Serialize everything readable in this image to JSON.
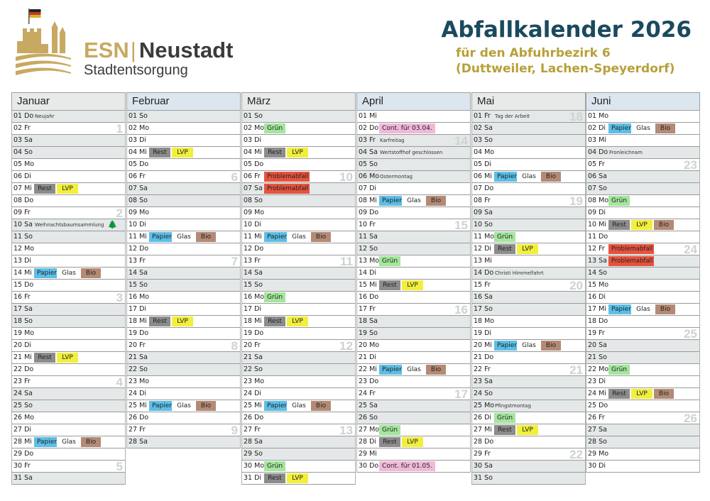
{
  "header": {
    "brand_esn": "ESN",
    "brand_sep": "|",
    "brand_city": "Neustadt",
    "brand_sub": "Stadtentsorgung",
    "title": "Abfallkalender 2026",
    "subtitle_line1": "für den Abfuhrbezirk 6",
    "subtitle_line2": "(Duttweiler, Lachen-Speyerdorf)"
  },
  "colors": {
    "rest": "#8c8c8c",
    "lvp": "#f2ef3c",
    "papier": "#5bbfe8",
    "bio": "#b48a75",
    "gruen": "#a3e69c",
    "problem": "#e5533d",
    "cont": "#f2b8d9",
    "title": "#1a4a5e",
    "gold": "#c8a962"
  },
  "months": [
    {
      "name": "Januar",
      "head": "gray",
      "days": [
        {
          "d": "01 Do",
          "we": true,
          "note": "Neujahr"
        },
        {
          "d": "02 Fr",
          "wk": "1"
        },
        {
          "d": "03 Sa",
          "we": true
        },
        {
          "d": "04 So",
          "we": true
        },
        {
          "d": "05 Mo"
        },
        {
          "d": "06 Di"
        },
        {
          "d": "07 Mi",
          "ev": [
            [
              "rest",
              "Rest"
            ],
            [
              "lvp",
              "LVP"
            ]
          ]
        },
        {
          "d": "08 Do"
        },
        {
          "d": "09 Fr",
          "wk": "2"
        },
        {
          "d": "10 Sa",
          "we": true,
          "note": "Weihnachtsbaumsammlung",
          "tree": true
        },
        {
          "d": "11 So",
          "we": true
        },
        {
          "d": "12 Mo"
        },
        {
          "d": "13 Di"
        },
        {
          "d": "14 Mi",
          "ev": [
            [
              "papier",
              "Papier"
            ],
            [
              "glas",
              "Glas"
            ],
            [
              "bio",
              "Bio"
            ]
          ]
        },
        {
          "d": "15 Do"
        },
        {
          "d": "16 Fr",
          "wk": "3"
        },
        {
          "d": "17 Sa",
          "we": true
        },
        {
          "d": "18 So",
          "we": true
        },
        {
          "d": "19 Mo"
        },
        {
          "d": "20 Di"
        },
        {
          "d": "21 Mi",
          "ev": [
            [
              "rest",
              "Rest"
            ],
            [
              "lvp",
              "LVP"
            ]
          ]
        },
        {
          "d": "22 Do"
        },
        {
          "d": "23 Fr",
          "wk": "4"
        },
        {
          "d": "24 Sa",
          "we": true
        },
        {
          "d": "25 So",
          "we": true
        },
        {
          "d": "26 Mo"
        },
        {
          "d": "27 Di"
        },
        {
          "d": "28 Mi",
          "ev": [
            [
              "papier",
              "Papier"
            ],
            [
              "glas",
              "Glas"
            ],
            [
              "bio",
              "Bio"
            ]
          ]
        },
        {
          "d": "29 Do"
        },
        {
          "d": "30 Fr",
          "wk": "5"
        },
        {
          "d": "31 Sa",
          "we": true
        }
      ]
    },
    {
      "name": "Februar",
      "head": "blue",
      "days": [
        {
          "d": "01 So",
          "we": true
        },
        {
          "d": "02 Mo"
        },
        {
          "d": "03 Di"
        },
        {
          "d": "04 Mi",
          "ev": [
            [
              "rest",
              "Rest"
            ],
            [
              "lvp",
              "LVP"
            ]
          ]
        },
        {
          "d": "05 Do"
        },
        {
          "d": "06 Fr",
          "wk": "6"
        },
        {
          "d": "07 Sa",
          "we": true
        },
        {
          "d": "08 So",
          "we": true
        },
        {
          "d": "09 Mo"
        },
        {
          "d": "10 Di"
        },
        {
          "d": "11 Mi",
          "ev": [
            [
              "papier",
              "Papier"
            ],
            [
              "glas",
              "Glas"
            ],
            [
              "bio",
              "Bio"
            ]
          ]
        },
        {
          "d": "12 Do"
        },
        {
          "d": "13 Fr",
          "wk": "7"
        },
        {
          "d": "14 Sa",
          "we": true
        },
        {
          "d": "15 So",
          "we": true
        },
        {
          "d": "16 Mo"
        },
        {
          "d": "17 Di"
        },
        {
          "d": "18 Mi",
          "ev": [
            [
              "rest",
              "Rest"
            ],
            [
              "lvp",
              "LVP"
            ]
          ]
        },
        {
          "d": "19 Do"
        },
        {
          "d": "20 Fr",
          "wk": "8"
        },
        {
          "d": "21 Sa",
          "we": true
        },
        {
          "d": "22 So",
          "we": true
        },
        {
          "d": "23 Mo"
        },
        {
          "d": "24 Di"
        },
        {
          "d": "25 Mi",
          "ev": [
            [
              "papier",
              "Papier"
            ],
            [
              "glas",
              "Glas"
            ],
            [
              "bio",
              "Bio"
            ]
          ]
        },
        {
          "d": "26 Do"
        },
        {
          "d": "27 Fr",
          "wk": "9"
        },
        {
          "d": "28 Sa",
          "we": true
        }
      ]
    },
    {
      "name": "März",
      "head": "gray",
      "days": [
        {
          "d": "01 So",
          "we": true
        },
        {
          "d": "02 Mo",
          "ev": [
            [
              "gruen",
              "Grün"
            ]
          ]
        },
        {
          "d": "03 Di"
        },
        {
          "d": "04 Mi",
          "ev": [
            [
              "rest",
              "Rest"
            ],
            [
              "lvp",
              "LVP"
            ]
          ]
        },
        {
          "d": "05 Do"
        },
        {
          "d": "06 Fr",
          "ev": [
            [
              "problem",
              "Problemabfall"
            ]
          ],
          "wk": "10"
        },
        {
          "d": "07 Sa",
          "we": true,
          "ev": [
            [
              "problem",
              "Problemabfall"
            ]
          ]
        },
        {
          "d": "08 So",
          "we": true
        },
        {
          "d": "09 Mo"
        },
        {
          "d": "10 Di"
        },
        {
          "d": "11 Mi",
          "ev": [
            [
              "papier",
              "Papier"
            ],
            [
              "glas",
              "Glas"
            ],
            [
              "bio",
              "Bio"
            ]
          ]
        },
        {
          "d": "12 Do"
        },
        {
          "d": "13 Fr",
          "wk": "11"
        },
        {
          "d": "14 Sa",
          "we": true
        },
        {
          "d": "15 So",
          "we": true
        },
        {
          "d": "16 Mo",
          "ev": [
            [
              "gruen",
              "Grün"
            ]
          ]
        },
        {
          "d": "17 Di"
        },
        {
          "d": "18 Mi",
          "ev": [
            [
              "rest",
              "Rest"
            ],
            [
              "lvp",
              "LVP"
            ]
          ]
        },
        {
          "d": "19 Do"
        },
        {
          "d": "20 Fr",
          "wk": "12"
        },
        {
          "d": "21 Sa",
          "we": true
        },
        {
          "d": "22 So",
          "we": true
        },
        {
          "d": "23 Mo"
        },
        {
          "d": "24 Di"
        },
        {
          "d": "25 Mi",
          "ev": [
            [
              "papier",
              "Papier"
            ],
            [
              "glas",
              "Glas"
            ],
            [
              "bio",
              "Bio"
            ]
          ]
        },
        {
          "d": "26 Do"
        },
        {
          "d": "27 Fr",
          "wk": "13"
        },
        {
          "d": "28 Sa",
          "we": true
        },
        {
          "d": "29 So",
          "we": true
        },
        {
          "d": "30 Mo",
          "ev": [
            [
              "gruen",
              "Grün"
            ]
          ]
        },
        {
          "d": "31 Di",
          "ev": [
            [
              "rest",
              "Rest"
            ],
            [
              "lvp",
              "LVP"
            ]
          ]
        }
      ]
    },
    {
      "name": "April",
      "head": "blue",
      "days": [
        {
          "d": "01 Mi"
        },
        {
          "d": "02 Do",
          "ev": [
            [
              "cont",
              "Cont. für 03.04."
            ]
          ]
        },
        {
          "d": "03 Fr",
          "we": true,
          "note": "Karfreitag",
          "wk": "14"
        },
        {
          "d": "04 Sa",
          "we": true,
          "note": "Wertstoffhof geschlossen"
        },
        {
          "d": "05 So",
          "we": true
        },
        {
          "d": "06 Mo",
          "we": true,
          "note": "Ostermontag"
        },
        {
          "d": "07 Di"
        },
        {
          "d": "08 Mi",
          "ev": [
            [
              "papier",
              "Papier"
            ],
            [
              "glas",
              "Glas"
            ],
            [
              "bio",
              "Bio"
            ]
          ]
        },
        {
          "d": "09 Do"
        },
        {
          "d": "10 Fr",
          "wk": "15"
        },
        {
          "d": "11 Sa",
          "we": true
        },
        {
          "d": "12 So",
          "we": true
        },
        {
          "d": "13 Mo",
          "ev": [
            [
              "gruen",
              "Grün"
            ]
          ]
        },
        {
          "d": "14 Di"
        },
        {
          "d": "15 Mi",
          "ev": [
            [
              "rest",
              "Rest"
            ],
            [
              "lvp",
              "LVP"
            ]
          ]
        },
        {
          "d": "16 Do"
        },
        {
          "d": "17 Fr",
          "wk": "16"
        },
        {
          "d": "18 Sa",
          "we": true
        },
        {
          "d": "19 So",
          "we": true
        },
        {
          "d": "20 Mo"
        },
        {
          "d": "21 Di"
        },
        {
          "d": "22 Mi",
          "ev": [
            [
              "papier",
              "Papier"
            ],
            [
              "glas",
              "Glas"
            ],
            [
              "bio",
              "Bio"
            ]
          ]
        },
        {
          "d": "23 Do"
        },
        {
          "d": "24 Fr",
          "wk": "17"
        },
        {
          "d": "25 Sa",
          "we": true
        },
        {
          "d": "26 So",
          "we": true
        },
        {
          "d": "27 Mo",
          "ev": [
            [
              "gruen",
              "Grün"
            ]
          ]
        },
        {
          "d": "28 Di",
          "ev": [
            [
              "rest",
              "Rest"
            ],
            [
              "lvp",
              "LVP"
            ]
          ]
        },
        {
          "d": "29 Mi"
        },
        {
          "d": "30 Do",
          "ev": [
            [
              "cont",
              "Cont. für 01.05."
            ]
          ]
        }
      ]
    },
    {
      "name": "Mai",
      "head": "gray",
      "days": [
        {
          "d": "01 Fr",
          "we": true,
          "note": "Tag der Arbeit",
          "wk": "18"
        },
        {
          "d": "02 Sa",
          "we": true
        },
        {
          "d": "03 So",
          "we": true
        },
        {
          "d": "04 Mo"
        },
        {
          "d": "05 Di"
        },
        {
          "d": "06 Mi",
          "ev": [
            [
              "papier",
              "Papier"
            ],
            [
              "glas",
              "Glas"
            ],
            [
              "bio",
              "Bio"
            ]
          ]
        },
        {
          "d": "07 Do"
        },
        {
          "d": "08 Fr",
          "wk": "19"
        },
        {
          "d": "09 Sa",
          "we": true
        },
        {
          "d": "10 So",
          "we": true
        },
        {
          "d": "11 Mo",
          "ev": [
            [
              "gruen",
              "Grün"
            ]
          ]
        },
        {
          "d": "12 Di",
          "ev": [
            [
              "rest",
              "Rest"
            ],
            [
              "lvp",
              "LVP"
            ]
          ]
        },
        {
          "d": "13 Mi"
        },
        {
          "d": "14 Do",
          "we": true,
          "note": "Christi Himmelfahrt"
        },
        {
          "d": "15 Fr",
          "wk": "20"
        },
        {
          "d": "16 Sa",
          "we": true
        },
        {
          "d": "17 So",
          "we": true
        },
        {
          "d": "18 Mo"
        },
        {
          "d": "19 Di"
        },
        {
          "d": "20 Mi",
          "ev": [
            [
              "papier",
              "Papier"
            ],
            [
              "glas",
              "Glas"
            ],
            [
              "bio",
              "Bio"
            ]
          ]
        },
        {
          "d": "21 Do"
        },
        {
          "d": "22 Fr",
          "wk": "21"
        },
        {
          "d": "23 Sa",
          "we": true
        },
        {
          "d": "24 So",
          "we": true
        },
        {
          "d": "25 Mo",
          "we": true,
          "note": "Pfingstmontag"
        },
        {
          "d": "26 Di",
          "ev": [
            [
              "gruen",
              "Grün"
            ]
          ]
        },
        {
          "d": "27 Mi",
          "ev": [
            [
              "rest",
              "Rest"
            ],
            [
              "lvp",
              "LVP"
            ]
          ]
        },
        {
          "d": "28 Do"
        },
        {
          "d": "29 Fr",
          "wk": "22"
        },
        {
          "d": "30 Sa",
          "we": true
        },
        {
          "d": "31 So",
          "we": true
        }
      ]
    },
    {
      "name": "Juni",
      "head": "blue",
      "days": [
        {
          "d": "01 Mo"
        },
        {
          "d": "02 Di",
          "ev": [
            [
              "papier",
              "Papier"
            ],
            [
              "glas",
              "Glas"
            ],
            [
              "bio",
              "Bio"
            ]
          ]
        },
        {
          "d": "03 Mi"
        },
        {
          "d": "04 Do",
          "we": true,
          "note": "Fronleichnam"
        },
        {
          "d": "05 Fr",
          "wk": "23"
        },
        {
          "d": "06 Sa",
          "we": true
        },
        {
          "d": "07 So",
          "we": true
        },
        {
          "d": "08 Mo",
          "ev": [
            [
              "gruen",
              "Grün"
            ]
          ]
        },
        {
          "d": "09 Di"
        },
        {
          "d": "10 Mi",
          "ev": [
            [
              "rest",
              "Rest"
            ],
            [
              "lvp",
              "LVP"
            ],
            [
              "bio",
              "Bio"
            ]
          ]
        },
        {
          "d": "11 Do"
        },
        {
          "d": "12 Fr",
          "ev": [
            [
              "problem",
              "Problemabfall"
            ]
          ],
          "wk": "24"
        },
        {
          "d": "13 Sa",
          "we": true,
          "ev": [
            [
              "problem",
              "Problemabfall"
            ]
          ]
        },
        {
          "d": "14 So",
          "we": true
        },
        {
          "d": "15 Mo"
        },
        {
          "d": "16 Di"
        },
        {
          "d": "17 Mi",
          "ev": [
            [
              "papier",
              "Papier"
            ],
            [
              "glas",
              "Glas"
            ],
            [
              "bio",
              "Bio"
            ]
          ]
        },
        {
          "d": "18 Do"
        },
        {
          "d": "19 Fr",
          "wk": "25"
        },
        {
          "d": "20 Sa",
          "we": true
        },
        {
          "d": "21 So",
          "we": true
        },
        {
          "d": "22 Mo",
          "ev": [
            [
              "gruen",
              "Grün"
            ]
          ]
        },
        {
          "d": "23 Di"
        },
        {
          "d": "24 Mi",
          "ev": [
            [
              "rest",
              "Rest"
            ],
            [
              "lvp",
              "LVP"
            ],
            [
              "bio",
              "Bio"
            ]
          ]
        },
        {
          "d": "25 Do"
        },
        {
          "d": "26 Fr",
          "wk": "26"
        },
        {
          "d": "27 Sa",
          "we": true
        },
        {
          "d": "28 So",
          "we": true
        },
        {
          "d": "29 Mo"
        },
        {
          "d": "30 Di"
        }
      ]
    }
  ]
}
